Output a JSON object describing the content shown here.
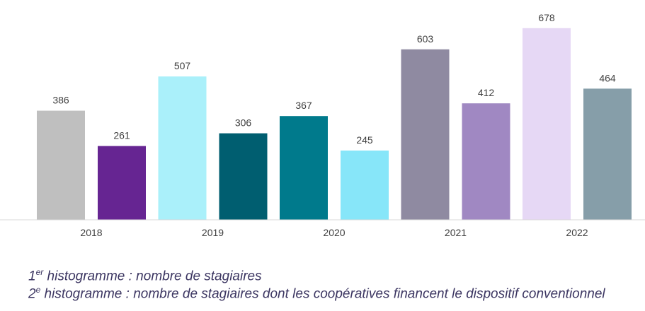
{
  "chart_data": {
    "type": "bar",
    "categories": [
      "2018",
      "2019",
      "2020",
      "2021",
      "2022"
    ],
    "series": [
      {
        "values": [
          386,
          507,
          367,
          603,
          678
        ],
        "colors": [
          "#bfbfbf",
          "#aaf0fa",
          "#007a8c",
          "#8f8aa1",
          "#e6d8f5"
        ]
      },
      {
        "values": [
          261,
          306,
          245,
          412,
          464
        ],
        "colors": [
          "#662592",
          "#005e70",
          "#87e6f9",
          "#a088c2",
          "#869ea9"
        ]
      }
    ],
    "ylim": [
      0,
      720
    ],
    "grid": false,
    "legend_notes": [
      {
        "ordinal": "1",
        "suffix": "er",
        "text": " histogramme : nombre de stagiaires"
      },
      {
        "ordinal": "2",
        "suffix": "e",
        "text": " histogramme : nombre de stagiaires dont les coopératives financent le dispositif conventionnel"
      }
    ]
  }
}
